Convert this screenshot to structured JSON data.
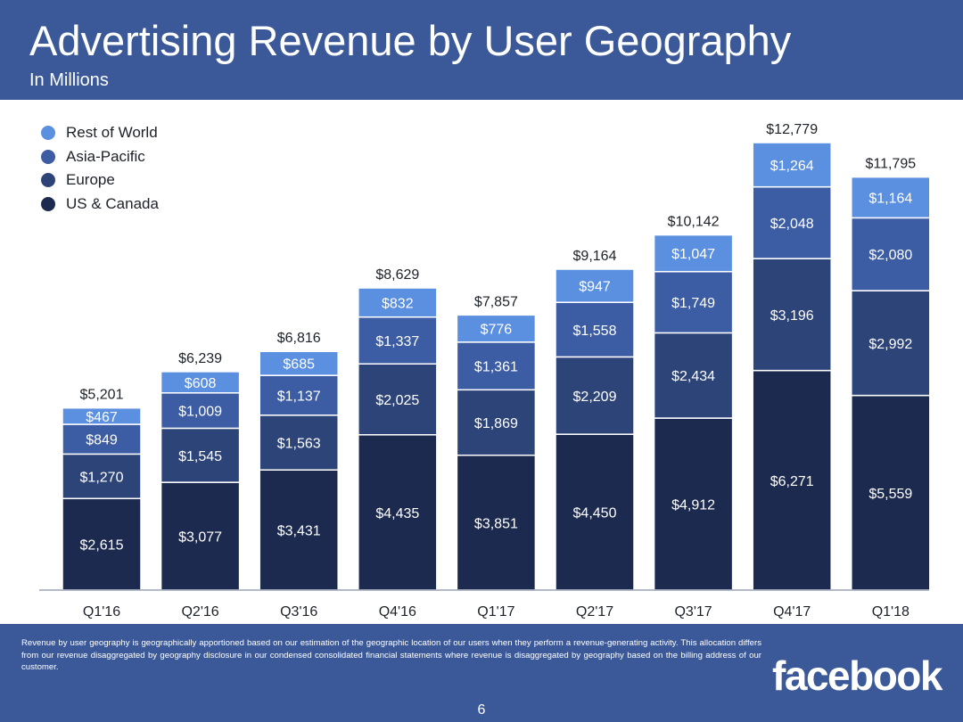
{
  "header": {
    "title": "Advertising Revenue by User Geography",
    "subtitle": "In Millions"
  },
  "chart_data": {
    "type": "bar",
    "stacked": true,
    "categories": [
      "Q1'16",
      "Q2'16",
      "Q3'16",
      "Q4'16",
      "Q1'17",
      "Q2'17",
      "Q3'17",
      "Q4'17",
      "Q1'18"
    ],
    "series": [
      {
        "name": "US & Canada",
        "color": "#1c2a4f",
        "values": [
          2615,
          3077,
          3431,
          4435,
          3851,
          4450,
          4912,
          6271,
          5559
        ],
        "labels": [
          "$2,615",
          "$3,077",
          "$3,431",
          "$4,435",
          "$3,851",
          "$4,450",
          "$4,912",
          "$6,271",
          "$5,559"
        ]
      },
      {
        "name": "Europe",
        "color": "#2d4479",
        "values": [
          1270,
          1545,
          1563,
          2025,
          1869,
          2209,
          2434,
          3196,
          2992
        ],
        "labels": [
          "$1,270",
          "$1,545",
          "$1,563",
          "$2,025",
          "$1,869",
          "$2,209",
          "$2,434",
          "$3,196",
          "$2,992"
        ]
      },
      {
        "name": "Asia-Pacific",
        "color": "#3c5ca3",
        "values": [
          849,
          1009,
          1137,
          1337,
          1361,
          1558,
          1749,
          2048,
          2080
        ],
        "labels": [
          "$849",
          "$1,009",
          "$1,137",
          "$1,337",
          "$1,361",
          "$1,558",
          "$1,749",
          "$2,048",
          "$2,080"
        ]
      },
      {
        "name": "Rest of World",
        "color": "#5b8fe0",
        "values": [
          467,
          608,
          685,
          832,
          776,
          947,
          1047,
          1264,
          1164
        ],
        "labels": [
          "$467",
          "$608",
          "$685",
          "$832",
          "$776",
          "$947",
          "$1,047",
          "$1,264",
          "$1,164"
        ]
      }
    ],
    "totals": [
      "$5,201",
      "$6,239",
      "$6,816",
      "$8,629",
      "$7,857",
      "$9,164",
      "$10,142",
      "$12,779",
      "$11,795"
    ],
    "legend": [
      "Rest of World",
      "Asia-Pacific",
      "Europe",
      "US & Canada"
    ],
    "legend_position": "top-left",
    "ylim": [
      0,
      12779
    ],
    "grid": false
  },
  "footer": {
    "footnote": "Revenue by user geography is geographically apportioned based on our estimation of the geographic location of our users when they perform a revenue-generating activity. This allocation differs from our revenue disaggregated by geography disclosure in our condensed consolidated financial statements where revenue is disaggregated by geography based on the billing address of our customer.",
    "logo": "facebook",
    "page_number": "6"
  }
}
